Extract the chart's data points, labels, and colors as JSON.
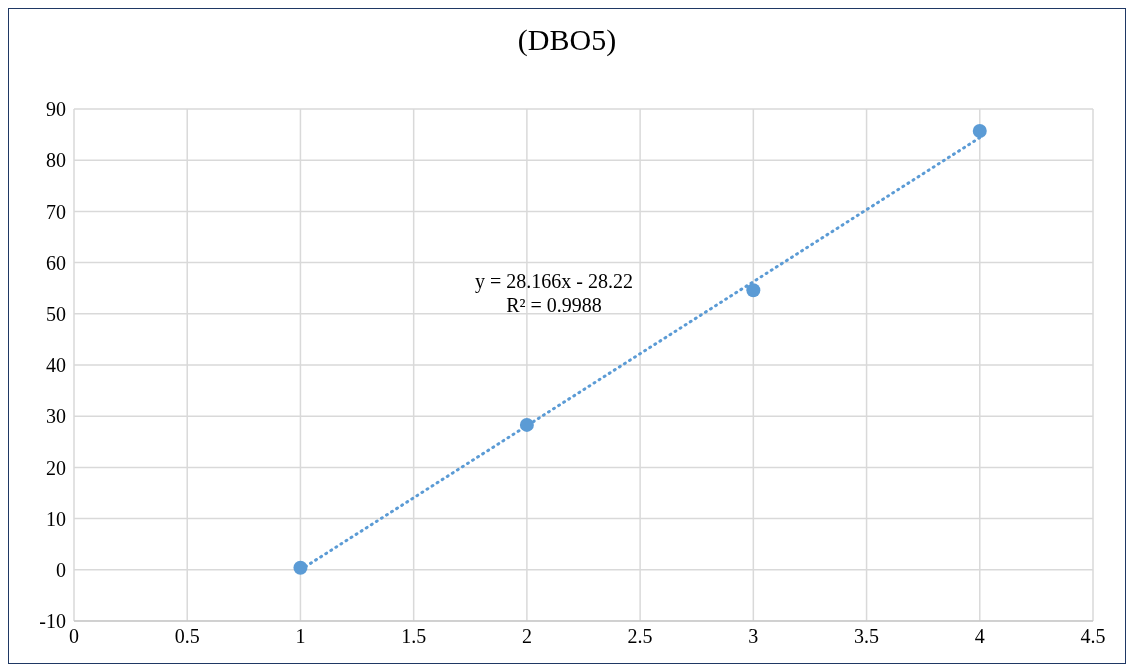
{
  "chart_data": {
    "type": "scatter",
    "title": "(DBO5)",
    "xlim": [
      0,
      4.5
    ],
    "xticks": [
      0,
      0.5,
      1,
      1.5,
      2,
      2.5,
      3,
      3.5,
      4,
      4.5
    ],
    "ylim": [
      -10,
      90
    ],
    "yticks": [
      -10,
      0,
      10,
      20,
      30,
      40,
      50,
      60,
      70,
      80,
      90
    ],
    "grid": true,
    "marker": "circle",
    "legend": false,
    "series": [
      {
        "color": "#5b9bd5",
        "x": [
          1,
          2,
          3,
          4
        ],
        "values": [
          0.4,
          28.3,
          54.6,
          85.7
        ]
      },
      {
        "type": "line",
        "color": "#5b9bd5",
        "x": [
          1,
          4
        ],
        "values": [
          0,
          84.4
        ],
        "line_style": "dotted",
        "marker": "none"
      }
    ],
    "annotations": [
      "y = 28.166x - 28.22",
      "R² = 0.9988"
    ]
  }
}
